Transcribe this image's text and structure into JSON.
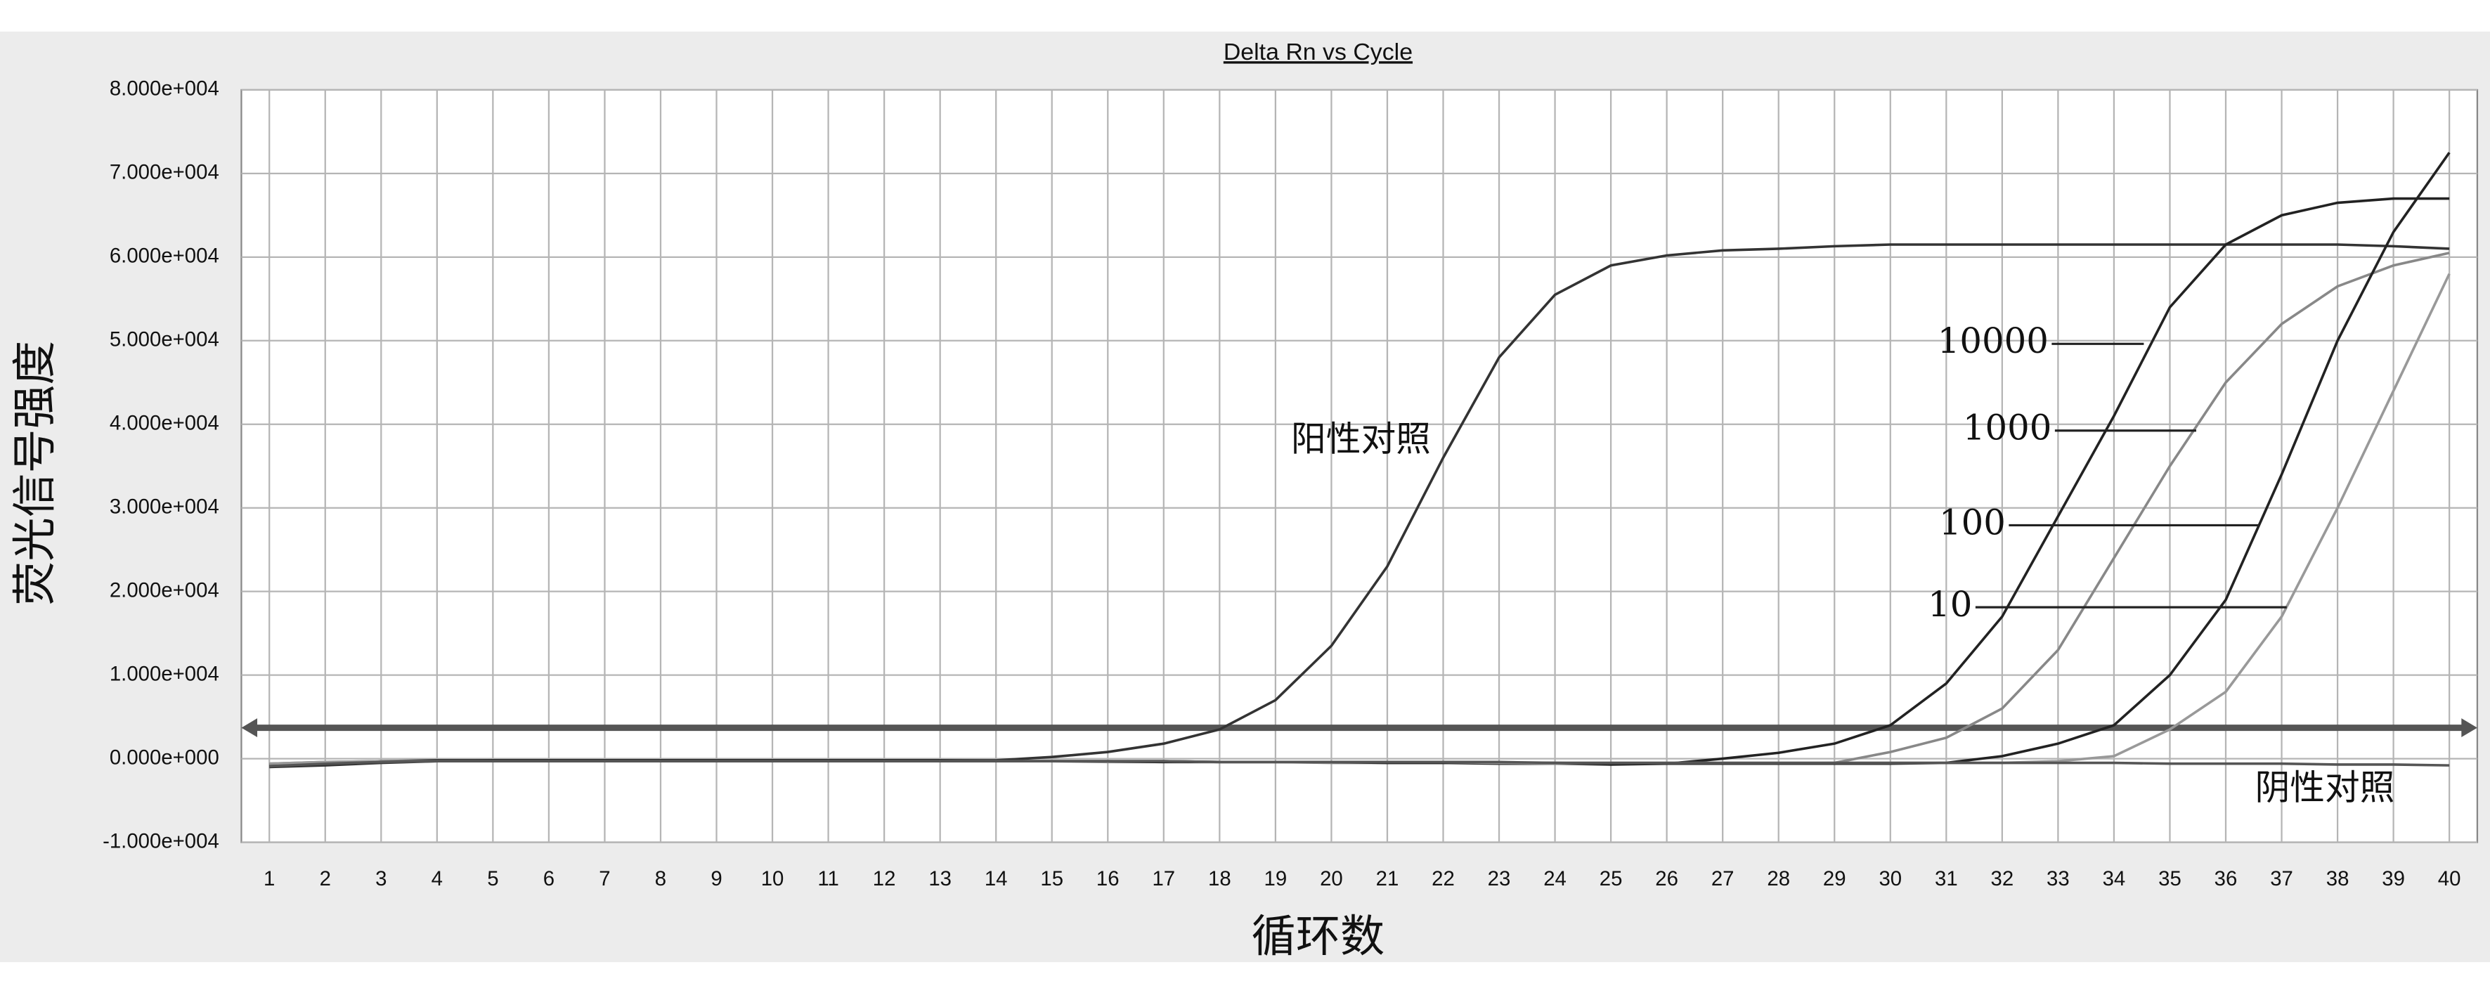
{
  "chart_data": {
    "type": "line",
    "title": "Delta Rn vs Cycle",
    "x_label": "循环数",
    "y_label": "荧光信号强度",
    "x": [
      1,
      2,
      3,
      4,
      5,
      6,
      7,
      8,
      9,
      10,
      11,
      12,
      13,
      14,
      15,
      16,
      17,
      18,
      19,
      20,
      21,
      22,
      23,
      24,
      25,
      26,
      27,
      28,
      29,
      30,
      31,
      32,
      33,
      34,
      35,
      36,
      37,
      38,
      39,
      40
    ],
    "xlim": [
      0.5,
      40.5
    ],
    "xticks": [
      1,
      2,
      3,
      4,
      5,
      6,
      7,
      8,
      9,
      10,
      11,
      12,
      13,
      14,
      15,
      16,
      17,
      18,
      19,
      20,
      21,
      22,
      23,
      24,
      25,
      26,
      27,
      28,
      29,
      30,
      31,
      32,
      33,
      34,
      35,
      36,
      37,
      38,
      39,
      40
    ],
    "ylim": [
      -10000,
      80000
    ],
    "yticks": [
      {
        "value": -10000,
        "label": "-1.000e+004"
      },
      {
        "value": 0,
        "label": "0.000e+000"
      },
      {
        "value": 10000,
        "label": "1.000e+004"
      },
      {
        "value": 20000,
        "label": "2.000e+004"
      },
      {
        "value": 30000,
        "label": "3.000e+004"
      },
      {
        "value": 40000,
        "label": "4.000e+004"
      },
      {
        "value": 50000,
        "label": "5.000e+004"
      },
      {
        "value": 60000,
        "label": "6.000e+004"
      },
      {
        "value": 70000,
        "label": "7.000e+004"
      },
      {
        "value": 80000,
        "label": "8.000e+004"
      }
    ],
    "grid": true,
    "threshold": 3700,
    "threshold_color": "#555555",
    "series": [
      {
        "name": "阳性对照",
        "color": "#333333",
        "values": [
          -1000,
          -800,
          -500,
          -300,
          -200,
          -200,
          -200,
          -200,
          -200,
          -200,
          -200,
          -200,
          -200,
          -200,
          200,
          800,
          1800,
          3500,
          7000,
          13500,
          23000,
          36000,
          48000,
          55500,
          59000,
          60200,
          60800,
          61000,
          61300,
          61500,
          61500,
          61500,
          61500,
          61500,
          61500,
          61500,
          61500,
          61500,
          61300,
          61000
        ]
      },
      {
        "name": "10000",
        "color": "#222222",
        "values": [
          -800,
          -500,
          -300,
          -200,
          -200,
          -200,
          -200,
          -200,
          -200,
          -200,
          -200,
          -200,
          -200,
          -300,
          -300,
          -300,
          -300,
          -400,
          -400,
          -400,
          -500,
          -500,
          -600,
          -600,
          -700,
          -600,
          0,
          700,
          1800,
          4000,
          9000,
          17000,
          29000,
          41000,
          54000,
          61500,
          65000,
          66500,
          67000,
          67000
        ]
      },
      {
        "name": "1000",
        "color": "#888888",
        "values": [
          -600,
          -400,
          -300,
          -300,
          -300,
          -300,
          -300,
          -300,
          -300,
          -300,
          -300,
          -300,
          -300,
          -300,
          -300,
          -400,
          -400,
          -400,
          -400,
          -500,
          -500,
          -500,
          -500,
          -600,
          -600,
          -600,
          -600,
          -600,
          -500,
          800,
          2500,
          6000,
          13000,
          24000,
          35000,
          45000,
          52000,
          56500,
          59000,
          60500
        ]
      },
      {
        "name": "100",
        "color": "#222222",
        "values": [
          -700,
          -500,
          -300,
          -300,
          -300,
          -300,
          -300,
          -300,
          -300,
          -300,
          -300,
          -300,
          -300,
          -300,
          -300,
          -300,
          -400,
          -400,
          -400,
          -400,
          -500,
          -500,
          -500,
          -500,
          -600,
          -600,
          -600,
          -600,
          -600,
          -600,
          -500,
          300,
          1800,
          4000,
          10000,
          19000,
          34000,
          50000,
          63000,
          72500
        ]
      },
      {
        "name": "10",
        "color": "#999999",
        "values": [
          -600,
          -400,
          -300,
          -300,
          -300,
          -300,
          -300,
          -300,
          -300,
          -300,
          -300,
          -300,
          -300,
          -300,
          -300,
          -300,
          -300,
          -400,
          -400,
          -400,
          -400,
          -400,
          -500,
          -500,
          -500,
          -500,
          -500,
          -500,
          -500,
          -500,
          -500,
          -500,
          -300,
          300,
          3500,
          8000,
          17000,
          30000,
          44000,
          58000
        ]
      },
      {
        "name": "阴性对照",
        "color": "#555555",
        "values": [
          -900,
          -600,
          -400,
          -300,
          -300,
          -300,
          -300,
          -300,
          -300,
          -300,
          -300,
          -300,
          -300,
          -300,
          -300,
          -300,
          -300,
          -400,
          -400,
          -400,
          -400,
          -400,
          -400,
          -500,
          -500,
          -500,
          -500,
          -500,
          -500,
          -500,
          -500,
          -500,
          -500,
          -500,
          -600,
          -600,
          -600,
          -700,
          -700,
          -800
        ]
      }
    ]
  }
}
